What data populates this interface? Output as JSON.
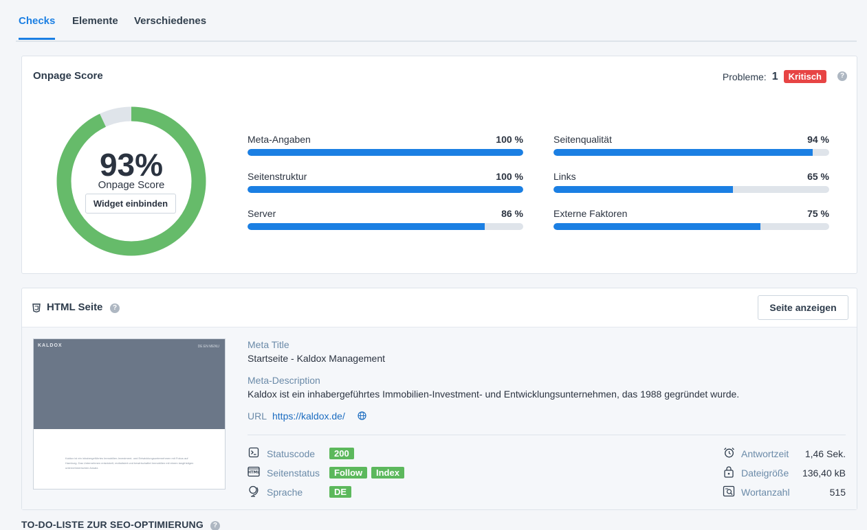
{
  "tabs": [
    {
      "label": "Checks",
      "active": true
    },
    {
      "label": "Elemente",
      "active": false
    },
    {
      "label": "Verschiedenes",
      "active": false
    }
  ],
  "score_card": {
    "title": "Onpage Score",
    "probleme_label": "Probleme:",
    "probleme_count": "1",
    "probleme_badge": "Kritisch",
    "score_value": "93%",
    "score_fraction": 0.93,
    "score_label": "Onpage Score",
    "widget_button": "Widget einbinden",
    "metrics": [
      {
        "label": "Meta-Angaben",
        "value": "100 %",
        "fraction": 1.0
      },
      {
        "label": "Seitenstruktur",
        "value": "100 %",
        "fraction": 1.0
      },
      {
        "label": "Server",
        "value": "86 %",
        "fraction": 0.86
      },
      {
        "label": "Seitenqualität",
        "value": "94 %",
        "fraction": 0.94
      },
      {
        "label": "Links",
        "value": "65 %",
        "fraction": 0.65
      },
      {
        "label": "Externe Faktoren",
        "value": "75 %",
        "fraction": 0.75
      }
    ]
  },
  "html_card": {
    "title": "HTML Seite",
    "view_button": "Seite anzeigen",
    "thumbnail": {
      "logo": "KALDOX",
      "nav": "DE  EN     MENU",
      "text": "Kaldox ist ein inhabergeführtes Immobilien-Investment- und Entwicklungsunternehmen mit Fokus auf Hamburg. Das Unternehmen entwickelt, revitalisiert und bewirtschaftet Immobilien mit einem langfristigen unternehmerischen Ansatz."
    },
    "meta_title_label": "Meta Title",
    "meta_title": "Startseite - Kaldox Management",
    "meta_description_label": "Meta-Description",
    "meta_description": "Kaldox ist ein inhabergeführtes Immobilien-Investment- und Entwicklungsunternehmen, das 1988 gegründet wurde.",
    "url_label": "URL",
    "url": "https://kaldox.de/",
    "statuscode_label": "Statuscode",
    "statuscode": "200",
    "seitenstatus_label": "Seitenstatus",
    "seitenstatus_follow": "Follow",
    "seitenstatus_index": "Index",
    "sprache_label": "Sprache",
    "sprache": "DE",
    "antwortzeit_label": "Antwortzeit",
    "antwortzeit": "1,46 Sek.",
    "dateigroesse_label": "Dateigröße",
    "dateigroesse": "136,40 kB",
    "wortanzahl_label": "Wortanzahl",
    "wortanzahl": "515"
  },
  "todo_title": "TO-DO-LISTE ZUR SEO-OPTIMIERUNG",
  "colors": {
    "accent": "#1b7fe3",
    "score_green": "#66bb6a",
    "critical_red": "#e74444",
    "badge_green": "#5cb85c"
  }
}
